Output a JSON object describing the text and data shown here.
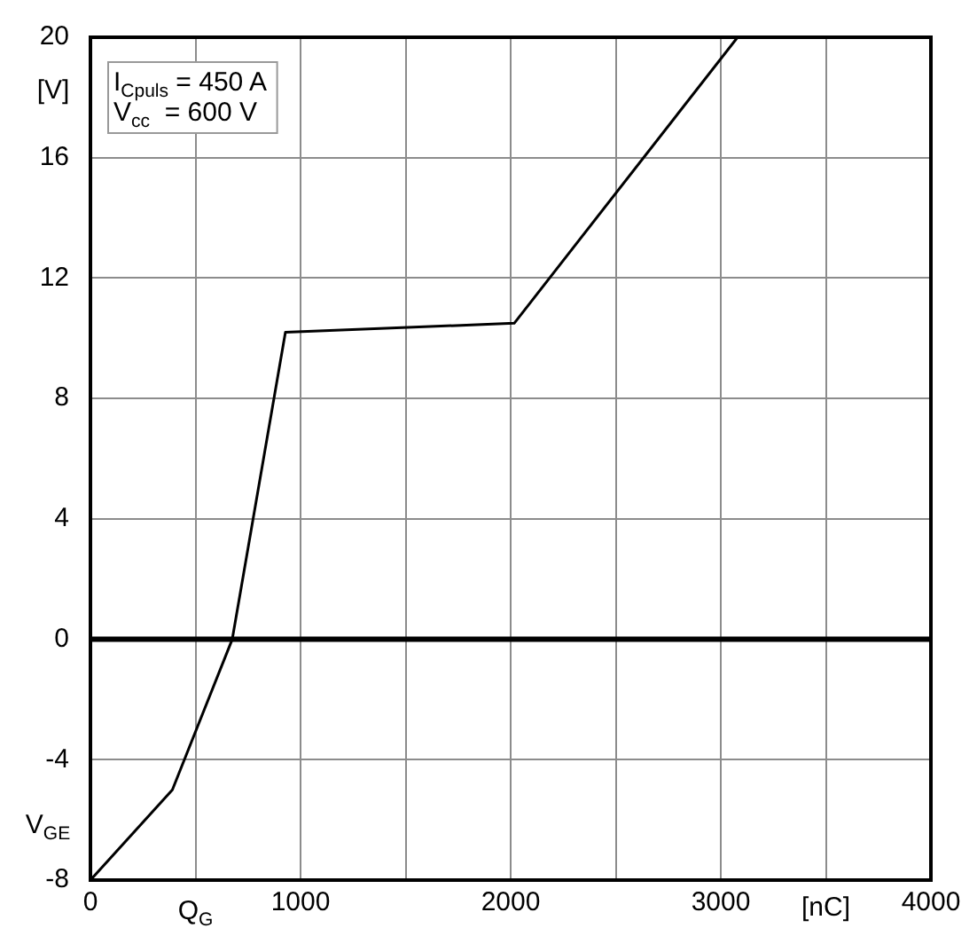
{
  "chart_data": {
    "type": "line",
    "xlabel": "Q$_{G}$",
    "ylabel": "V$_{GE}$",
    "annotations": [
      "[nC]",
      "[V]",
      "I$_{Cpuls}$ = 450 A",
      "V$_{cc}$  = 600 V"
    ],
    "x": [
      0,
      390,
      675,
      928,
      2017,
      3080
    ],
    "series": [
      {
        "color": "#000000",
        "values": [
          -8,
          -5,
          0,
          10.2,
          10.5,
          20
        ]
      }
    ],
    "xlim": [
      0,
      4000
    ],
    "xticks": [
      0,
      {
        "value": 500,
        "label": null
      },
      1000,
      {
        "value": 1500,
        "label": null
      },
      2000,
      {
        "value": 2500,
        "label": null
      },
      3000,
      {
        "value": 3500,
        "label": null
      },
      4000
    ],
    "ylim": [
      -8,
      20
    ],
    "yticks": [
      -8,
      -4,
      0,
      4,
      8,
      12,
      16,
      20
    ],
    "ref_lines": [
      {
        "axis": "y",
        "value": 0,
        "color": "#000000"
      }
    ],
    "grid": true,
    "legend": false,
    "marker": "none",
    "line_style": "solid"
  }
}
